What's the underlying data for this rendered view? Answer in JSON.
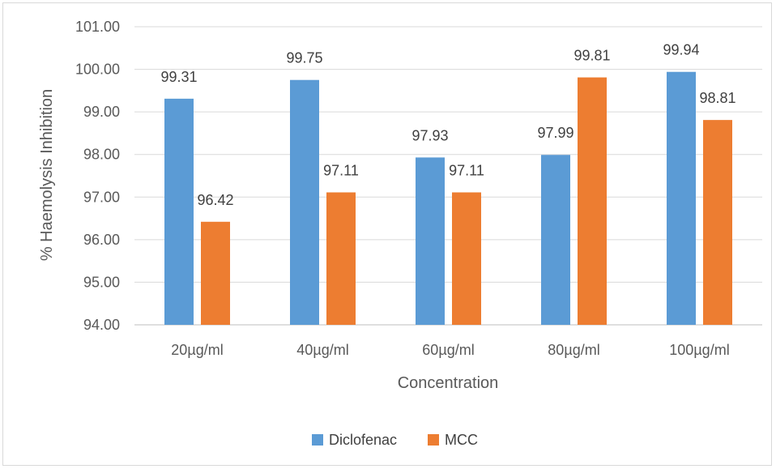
{
  "chart_data": {
    "type": "bar",
    "title": "",
    "xlabel": "Concentration",
    "ylabel": "% Haemolysis Inhibition",
    "categories": [
      "20µg/ml",
      "40µg/ml",
      "60µg/ml",
      "80µg/ml",
      "100µg/ml"
    ],
    "series": [
      {
        "name": "Diclofenac",
        "color": "#5b9bd5",
        "values": [
          99.31,
          99.75,
          97.93,
          97.99,
          99.94
        ]
      },
      {
        "name": "MCC",
        "color": "#ed7d31",
        "values": [
          96.42,
          97.11,
          97.11,
          99.81,
          98.81
        ]
      }
    ],
    "ylim": [
      94,
      101
    ],
    "yticks": [
      "94.00",
      "95.00",
      "96.00",
      "97.00",
      "98.00",
      "99.00",
      "100.00",
      "101.00"
    ],
    "grid": true,
    "legend_position": "bottom"
  }
}
